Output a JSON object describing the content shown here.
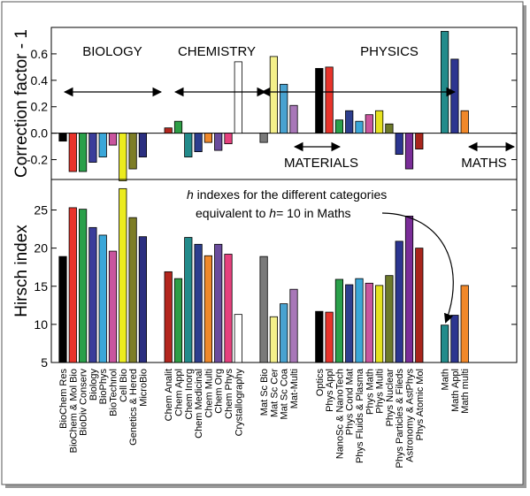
{
  "chart_data": {
    "type": "bar",
    "categories": [
      "BioChem Res",
      "BioChem & Mol Bio",
      "BioDiv Conserv",
      "Biology",
      "BioPhys",
      "BioTechnol",
      "Cell Bio",
      "Genetics & Hered",
      "MicroBio",
      "Chem Analit",
      "Chem Appl",
      "Chem Inorg",
      "Chem Medicinal",
      "Chem Multi",
      "Chem Org",
      "Chem Phys",
      "Crystallography",
      "Mat Sc Bio",
      "Mat Sc Cer",
      "Mat Sc Coa",
      "Mat-Multi",
      "Optics",
      "Phys Appl",
      "NanoSc & NanoTech",
      "Phys Cond Mat",
      "Phys Fluids & Plasma",
      "Phys Math",
      "Phys Multi",
      "Phys Nuclear",
      "Phys Particles & Fileds",
      "Astronomy & AstPhys",
      "Phys Atomic Mol",
      "Math",
      "Math Appl",
      "Math multi"
    ],
    "groups": [
      {
        "label": "BIOLOGY",
        "members": [
          0,
          1,
          2,
          3,
          4,
          5,
          6,
          7,
          8
        ]
      },
      {
        "label": "CHEMISTRY",
        "members": [
          9,
          10,
          11,
          12,
          13,
          14,
          15,
          16
        ]
      },
      {
        "label": "MATERIALS",
        "members": [
          17,
          18,
          19,
          20
        ]
      },
      {
        "label": "PHYSICS",
        "members": [
          21,
          22,
          23,
          24,
          25,
          26,
          27,
          28,
          29,
          30,
          31
        ]
      },
      {
        "label": "MATHS",
        "members": [
          32,
          33,
          34
        ]
      }
    ],
    "colors": [
      "#000000",
      "#e8332a",
      "#2aa04a",
      "#3a3d9a",
      "#3aa7d9",
      "#c9559e",
      "#ecec1f",
      "#7d7d26",
      "#2b2f80",
      "#b3261e",
      "#2e9e46",
      "#238b8b",
      "#2d3e8e",
      "#f0882a",
      "#6a4c9c",
      "#e6407e",
      "#ffffff",
      "#7a7a7a",
      "#f4f08a",
      "#48a2d0",
      "#a877b8",
      "#000000",
      "#e8332a",
      "#2aa04a",
      "#2d3e8e",
      "#3aa7d9",
      "#c9559e",
      "#e6e21f",
      "#6d7a2a",
      "#2b3590",
      "#7a2d98",
      "#a8251c",
      "#238b8b",
      "#2d3590",
      "#f0882a"
    ],
    "panels": [
      {
        "ylabel": "Correction factor - 1",
        "ylim": [
          -0.35,
          0.8
        ],
        "yticks": [
          -0.2,
          0,
          0.2,
          0.4,
          0.6
        ],
        "ytick_labels": [
          "-0.2",
          "0.0",
          "0.2",
          "0.4",
          "0.6"
        ],
        "values": [
          -0.06,
          -0.29,
          -0.29,
          -0.22,
          -0.18,
          -0.09,
          -0.36,
          -0.27,
          -0.18,
          0.04,
          0.09,
          -0.18,
          -0.14,
          -0.07,
          -0.13,
          -0.08,
          0.54,
          -0.07,
          0.58,
          0.37,
          0.21,
          0.49,
          0.5,
          0.1,
          0.17,
          0.09,
          0.14,
          0.17,
          0.07,
          -0.16,
          -0.27,
          -0.12,
          0.77,
          0.56,
          0.17
        ]
      },
      {
        "ylabel": "Hirsch index",
        "ylim": [
          5,
          29
        ],
        "yticks": [
          5,
          10,
          15,
          20,
          25
        ],
        "ytick_labels": [
          "5",
          "10",
          "15",
          "20",
          "25"
        ],
        "values": [
          18.9,
          25.3,
          25.1,
          22.7,
          21.7,
          19.6,
          27.8,
          24.0,
          21.5,
          16.9,
          16.0,
          21.4,
          20.5,
          19.0,
          20.5,
          19.2,
          11.3,
          18.9,
          11.0,
          12.7,
          14.6,
          11.7,
          11.6,
          15.9,
          15.2,
          16.0,
          15.4,
          15.1,
          16.4,
          20.9,
          24.2,
          20.0,
          9.9,
          11.2,
          15.1
        ]
      }
    ],
    "annotation": {
      "lines": [
        {
          "italic": "h",
          "text": " indexes for the different categories"
        },
        {
          "italic": "",
          "text": "equivalent to "
        },
        {
          "italic": "h",
          "text": "= 10 in Maths"
        }
      ]
    },
    "grid": false,
    "legend": "none"
  }
}
